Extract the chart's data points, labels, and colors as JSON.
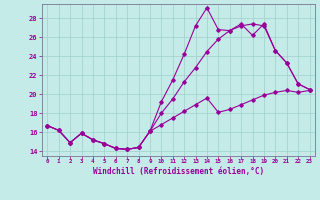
{
  "title": "",
  "xlabel": "Windchill (Refroidissement éolien,°C)",
  "ylabel": "",
  "bg_color": "#c5ebe8",
  "line_color": "#990099",
  "grid_color": "#9dcfcc",
  "xlim": [
    -0.5,
    23.5
  ],
  "ylim": [
    13.5,
    29.5
  ],
  "yticks": [
    14,
    16,
    18,
    20,
    22,
    24,
    26,
    28
  ],
  "ytick_labels": [
    "14",
    "16",
    "18",
    "20",
    "22",
    "24",
    "26",
    "28"
  ],
  "xticks": [
    0,
    1,
    2,
    3,
    4,
    5,
    6,
    7,
    8,
    9,
    10,
    11,
    12,
    13,
    14,
    15,
    16,
    17,
    18,
    19,
    20,
    21,
    22,
    23
  ],
  "series1_x": [
    0,
    1,
    2,
    3,
    4,
    5,
    6,
    7,
    8,
    9,
    10,
    11,
    12,
    13,
    14,
    15,
    16,
    17,
    18,
    19,
    20,
    21,
    22,
    23
  ],
  "series1_y": [
    16.7,
    16.2,
    14.9,
    15.9,
    15.2,
    14.8,
    14.3,
    14.2,
    14.4,
    16.1,
    19.2,
    21.5,
    24.2,
    27.2,
    29.1,
    26.8,
    26.7,
    27.4,
    26.2,
    27.4,
    24.6,
    23.3,
    21.1,
    20.5
  ],
  "series2_x": [
    0,
    1,
    2,
    3,
    4,
    5,
    6,
    7,
    8,
    9,
    10,
    11,
    12,
    13,
    14,
    15,
    16,
    17,
    18,
    19,
    20,
    21,
    22,
    23
  ],
  "series2_y": [
    16.7,
    16.2,
    14.9,
    15.9,
    15.2,
    14.8,
    14.3,
    14.2,
    14.4,
    16.1,
    18.0,
    19.5,
    21.3,
    22.8,
    24.5,
    25.8,
    26.7,
    27.2,
    27.4,
    27.2,
    24.6,
    23.3,
    21.1,
    20.5
  ],
  "series3_x": [
    0,
    1,
    2,
    3,
    4,
    5,
    6,
    7,
    8,
    9,
    10,
    11,
    12,
    13,
    14,
    15,
    16,
    17,
    18,
    19,
    20,
    21,
    22,
    23
  ],
  "series3_y": [
    16.7,
    16.2,
    14.9,
    15.9,
    15.2,
    14.8,
    14.3,
    14.2,
    14.4,
    16.1,
    16.8,
    17.5,
    18.2,
    18.9,
    19.6,
    18.1,
    18.4,
    18.9,
    19.4,
    19.9,
    20.2,
    20.4,
    20.2,
    20.4
  ]
}
